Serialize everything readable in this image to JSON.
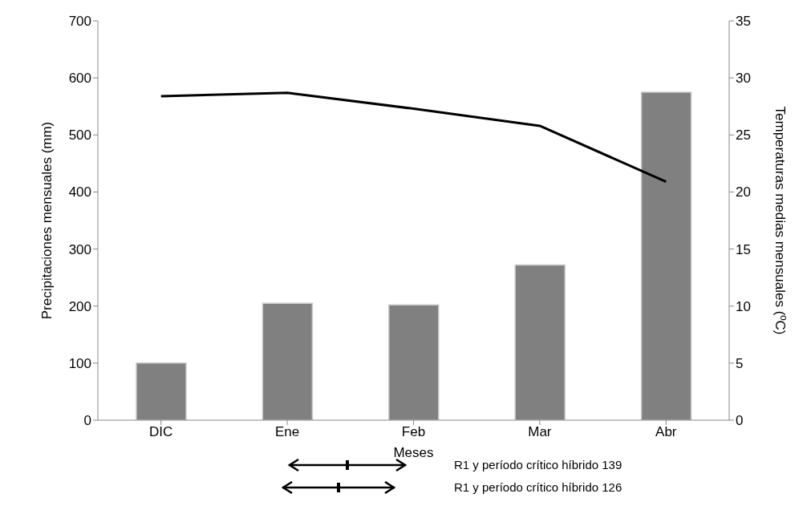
{
  "chart_data": {
    "type": "bar",
    "categories": [
      "DIC",
      "Ene",
      "Feb",
      "Mar",
      "Abr"
    ],
    "xlabel": "Meses",
    "ylabel": "Precipitaciones mensuales (mm)",
    "y2label": "Temperaturas medias mensuales (ºC)",
    "series": [
      {
        "color": "#808080",
        "values": [
          100,
          205,
          202,
          272,
          575
        ]
      },
      {
        "type": "line",
        "axis": "y2",
        "color": "#000000",
        "values": [
          28.4,
          28.7,
          27.3,
          25.8,
          20.9
        ]
      }
    ],
    "ylim": [
      0,
      700
    ],
    "yticks": [
      0,
      100,
      200,
      300,
      400,
      500,
      600,
      700
    ],
    "y2lim": [
      0,
      35
    ],
    "y2ticks": [
      0,
      5,
      10,
      15,
      20,
      25,
      30,
      35
    ],
    "annotations": [
      "R1 y período crítico híbrido 139",
      "R1 y período crítico híbrido 126"
    ]
  }
}
